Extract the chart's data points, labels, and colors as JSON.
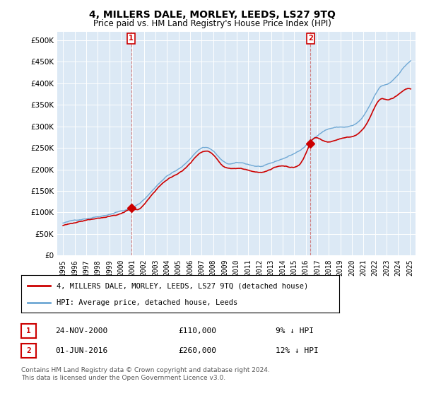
{
  "title": "4, MILLERS DALE, MORLEY, LEEDS, LS27 9TQ",
  "subtitle": "Price paid vs. HM Land Registry's House Price Index (HPI)",
  "legend_entry1": "4, MILLERS DALE, MORLEY, LEEDS, LS27 9TQ (detached house)",
  "legend_entry2": "HPI: Average price, detached house, Leeds",
  "marker1_date": "24-NOV-2000",
  "marker1_price": "£110,000",
  "marker1_hpi": "9% ↓ HPI",
  "marker1_x": 2000.9,
  "marker1_y": 110000,
  "marker2_date": "01-JUN-2016",
  "marker2_price": "£260,000",
  "marker2_hpi": "12% ↓ HPI",
  "marker2_x": 2016.42,
  "marker2_y": 260000,
  "footnote": "Contains HM Land Registry data © Crown copyright and database right 2024.\nThis data is licensed under the Open Government Licence v3.0.",
  "ylim": [
    0,
    520000
  ],
  "xlim_start": 1994.5,
  "xlim_end": 2025.5,
  "red_color": "#cc0000",
  "blue_color": "#6fa8d4",
  "plot_bg_color": "#dce9f5",
  "background_color": "#ffffff",
  "grid_color": "#ffffff"
}
